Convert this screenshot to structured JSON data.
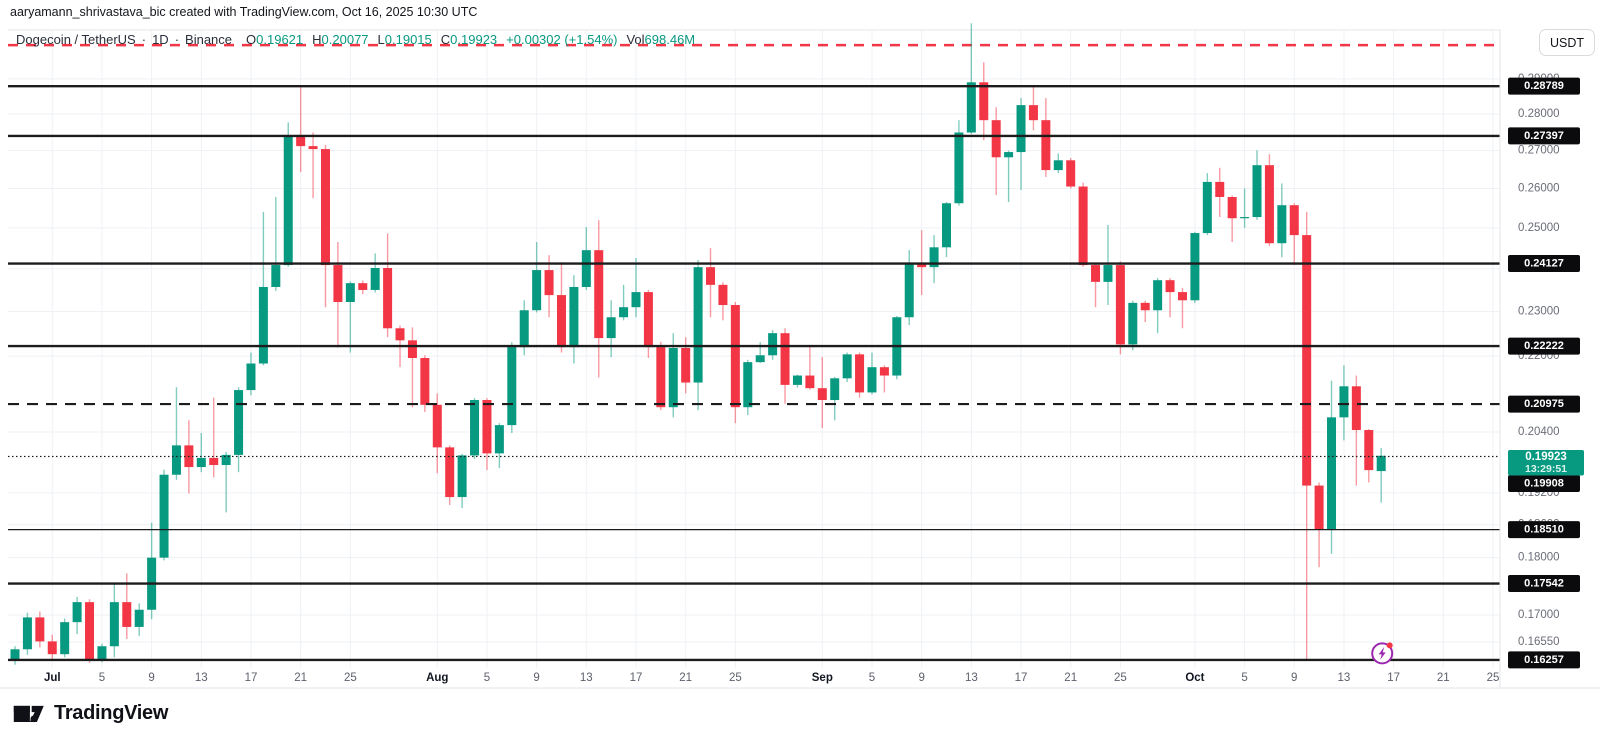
{
  "attribution": "aaryamann_shrivastava_bic created with TradingView.com, Oct 16, 2025 10:30 UTC",
  "header": {
    "symbol": "Dogecoin / TetherUS",
    "sep": "·",
    "interval": "1D",
    "exchange": "Binance",
    "o_label": "O",
    "o": "0.19621",
    "h_label": "H",
    "h": "0.20077",
    "l_label": "L",
    "l": "0.19015",
    "c_label": "C",
    "c": "0.19923",
    "change": "+0.00302 (+1.54%)",
    "vol_label": "Vol",
    "vol": "698.46M"
  },
  "axis_button": "USDT",
  "logo_text": "TradingView",
  "colors": {
    "up": "#089981",
    "down": "#f23645",
    "level": "#1c1c1c",
    "grid": "#eff1f5",
    "frame": "#e2e4ea",
    "axis_text": "#6a6d77",
    "day_label": "#5d606b",
    "month_label": "#131722",
    "badge_bg": "#0b0b0d",
    "badge_text": "#ffffff",
    "alert": "#f23645",
    "marker": "#9c27b0"
  },
  "chart_data": {
    "type": "candlestick",
    "symbol": "DOGEUSDT",
    "timeframe": "1D",
    "scale": "log",
    "ylim_approx": [
      0.158,
      0.315
    ],
    "grid": true,
    "ohlc_columns": [
      "date",
      "open",
      "high",
      "low",
      "close"
    ],
    "ohlc": [
      [
        "Jun 28",
        0.1625,
        0.1648,
        0.1618,
        0.1643
      ],
      [
        "Jun 29",
        0.1643,
        0.1704,
        0.1634,
        0.1696
      ],
      [
        "Jun 30",
        0.1696,
        0.1706,
        0.1646,
        0.1656
      ],
      [
        "Jul 1",
        0.1656,
        0.1667,
        0.1624,
        0.1635
      ],
      [
        "Jul 2",
        0.1635,
        0.1694,
        0.163,
        0.1688
      ],
      [
        "Jul 3",
        0.1688,
        0.1731,
        0.1668,
        0.1722
      ],
      [
        "Jul 4",
        0.1722,
        0.1727,
        0.1621,
        0.1626
      ],
      [
        "Jul 5",
        0.1626,
        0.1652,
        0.1622,
        0.1648
      ],
      [
        "Jul 6",
        0.1648,
        0.1753,
        0.163,
        0.1722
      ],
      [
        "Jul 7",
        0.1722,
        0.1772,
        0.166,
        0.168
      ],
      [
        "Jul 8",
        0.168,
        0.172,
        0.1665,
        0.1709
      ],
      [
        "Jul 9",
        0.1709,
        0.1864,
        0.1693,
        0.18
      ],
      [
        "Jul 10",
        0.18,
        0.1965,
        0.1795,
        0.1955
      ],
      [
        "Jul 11",
        0.1955,
        0.2133,
        0.1945,
        0.2013
      ],
      [
        "Jul 12",
        0.2013,
        0.2064,
        0.1919,
        0.197
      ],
      [
        "Jul 13",
        0.197,
        0.2038,
        0.196,
        0.1988
      ],
      [
        "Jul 14",
        0.1988,
        0.2111,
        0.195,
        0.1974
      ],
      [
        "Jul 15",
        0.1974,
        0.2,
        0.1883,
        0.1994
      ],
      [
        "Jul 16",
        0.1994,
        0.2133,
        0.196,
        0.2127
      ],
      [
        "Jul 17",
        0.2127,
        0.2208,
        0.2116,
        0.2184
      ],
      [
        "Jul 18",
        0.2184,
        0.254,
        0.218,
        0.2357
      ],
      [
        "Jul 19",
        0.2357,
        0.2578,
        0.2348,
        0.2409
      ],
      [
        "Jul 20",
        0.2409,
        0.2777,
        0.2405,
        0.274
      ],
      [
        "Jul 21",
        0.274,
        0.2876,
        0.2643,
        0.2712
      ],
      [
        "Jul 22",
        0.2712,
        0.2749,
        0.2575,
        0.2704
      ],
      [
        "Jul 23",
        0.2704,
        0.2715,
        0.231,
        0.2409
      ],
      [
        "Jul 24",
        0.2409,
        0.2465,
        0.2219,
        0.2322
      ],
      [
        "Jul 25",
        0.2322,
        0.237,
        0.2208,
        0.2366
      ],
      [
        "Jul 26",
        0.2366,
        0.2372,
        0.234,
        0.235
      ],
      [
        "Jul 27",
        0.235,
        0.2437,
        0.2344,
        0.2402
      ],
      [
        "Jul 28",
        0.2402,
        0.2486,
        0.2242,
        0.2262
      ],
      [
        "Jul 29",
        0.2262,
        0.2268,
        0.2176,
        0.2235
      ],
      [
        "Jul 30",
        0.2235,
        0.2264,
        0.2091,
        0.2196
      ],
      [
        "Jul 31",
        0.2196,
        0.2202,
        0.2081,
        0.2096
      ],
      [
        "Aug 1",
        0.2096,
        0.212,
        0.1958,
        0.2009
      ],
      [
        "Aug 2",
        0.2009,
        0.2013,
        0.1897,
        0.1912
      ],
      [
        "Aug 3",
        0.1912,
        0.1996,
        0.1891,
        0.1993
      ],
      [
        "Aug 4",
        0.1993,
        0.211,
        0.1986,
        0.2106
      ],
      [
        "Aug 5",
        0.2106,
        0.211,
        0.1964,
        0.1997
      ],
      [
        "Aug 6",
        0.1997,
        0.2058,
        0.1968,
        0.2054
      ],
      [
        "Aug 7",
        0.2054,
        0.2231,
        0.2038,
        0.222
      ],
      [
        "Aug 8",
        0.222,
        0.2326,
        0.2202,
        0.2303
      ],
      [
        "Aug 9",
        0.2303,
        0.2465,
        0.2298,
        0.2397
      ],
      [
        "Aug 10",
        0.2397,
        0.2433,
        0.2287,
        0.2338
      ],
      [
        "Aug 11",
        0.2338,
        0.2416,
        0.2208,
        0.222
      ],
      [
        "Aug 12",
        0.222,
        0.2385,
        0.2184,
        0.2357
      ],
      [
        "Aug 13",
        0.2357,
        0.2502,
        0.235,
        0.2445
      ],
      [
        "Aug 14",
        0.2445,
        0.2519,
        0.2154,
        0.224
      ],
      [
        "Aug 15",
        0.224,
        0.2326,
        0.2198,
        0.2287
      ],
      [
        "Aug 16",
        0.2287,
        0.2362,
        0.228,
        0.231
      ],
      [
        "Aug 17",
        0.231,
        0.2426,
        0.2287,
        0.2345
      ],
      [
        "Aug 18",
        0.2345,
        0.235,
        0.2196,
        0.222
      ],
      [
        "Aug 19",
        0.222,
        0.2232,
        0.2085,
        0.2091
      ],
      [
        "Aug 20",
        0.2091,
        0.2251,
        0.207,
        0.2218
      ],
      [
        "Aug 21",
        0.2218,
        0.2242,
        0.212,
        0.2143
      ],
      [
        "Aug 22",
        0.2143,
        0.2421,
        0.2085,
        0.2404
      ],
      [
        "Aug 23",
        0.2404,
        0.245,
        0.2287,
        0.2362
      ],
      [
        "Aug 24",
        0.2362,
        0.2368,
        0.228,
        0.2315
      ],
      [
        "Aug 25",
        0.2315,
        0.2322,
        0.2058,
        0.2091
      ],
      [
        "Aug 26",
        0.2091,
        0.2192,
        0.2075,
        0.2187
      ],
      [
        "Aug 27",
        0.2187,
        0.2231,
        0.2185,
        0.2202
      ],
      [
        "Aug 28",
        0.2202,
        0.2258,
        0.2192,
        0.2251
      ],
      [
        "Aug 29",
        0.2251,
        0.2262,
        0.2098,
        0.2138
      ],
      [
        "Aug 30",
        0.2138,
        0.216,
        0.2132,
        0.2158
      ],
      [
        "Aug 31",
        0.2158,
        0.2225,
        0.2128,
        0.2131
      ],
      [
        "Sep 1",
        0.2131,
        0.2198,
        0.2048,
        0.2106
      ],
      [
        "Sep 2",
        0.2106,
        0.2155,
        0.2064,
        0.2152
      ],
      [
        "Sep 3",
        0.2152,
        0.2208,
        0.2144,
        0.2204
      ],
      [
        "Sep 4",
        0.2204,
        0.2208,
        0.2111,
        0.2122
      ],
      [
        "Sep 5",
        0.2122,
        0.2208,
        0.2118,
        0.2176
      ],
      [
        "Sep 6",
        0.2176,
        0.218,
        0.2122,
        0.2158
      ],
      [
        "Sep 7",
        0.2158,
        0.229,
        0.215,
        0.2287
      ],
      [
        "Sep 8",
        0.2287,
        0.2445,
        0.2269,
        0.2414
      ],
      [
        "Sep 9",
        0.2414,
        0.2494,
        0.2338,
        0.2404
      ],
      [
        "Sep 10",
        0.2404,
        0.2482,
        0.2366,
        0.2452
      ],
      [
        "Sep 11",
        0.2452,
        0.2565,
        0.2428,
        0.2562
      ],
      [
        "Sep 12",
        0.2562,
        0.2783,
        0.2556,
        0.2749
      ],
      [
        "Sep 13",
        0.2749,
        0.3065,
        0.2745,
        0.289
      ],
      [
        "Sep 14",
        0.289,
        0.2948,
        0.2728,
        0.2783
      ],
      [
        "Sep 15",
        0.2783,
        0.2819,
        0.2583,
        0.2682
      ],
      [
        "Sep 16",
        0.2682,
        0.27,
        0.2565,
        0.2696
      ],
      [
        "Sep 17",
        0.2696,
        0.2845,
        0.2596,
        0.2825
      ],
      [
        "Sep 18",
        0.2825,
        0.2879,
        0.2755,
        0.2783
      ],
      [
        "Sep 19",
        0.2783,
        0.2845,
        0.263,
        0.2648
      ],
      [
        "Sep 20",
        0.2648,
        0.2692,
        0.264,
        0.2674
      ],
      [
        "Sep 21",
        0.2674,
        0.268,
        0.26,
        0.2605
      ],
      [
        "Sep 22",
        0.2605,
        0.2615,
        0.2405,
        0.2409
      ],
      [
        "Sep 23",
        0.2409,
        0.2415,
        0.231,
        0.2369
      ],
      [
        "Sep 24",
        0.2369,
        0.2507,
        0.2315,
        0.2409
      ],
      [
        "Sep 25",
        0.2409,
        0.2418,
        0.2204,
        0.2226
      ],
      [
        "Sep 26",
        0.2226,
        0.2325,
        0.2213,
        0.232
      ],
      [
        "Sep 27",
        0.232,
        0.2325,
        0.2276,
        0.2303
      ],
      [
        "Sep 28",
        0.2303,
        0.2378,
        0.2251,
        0.2373
      ],
      [
        "Sep 29",
        0.2373,
        0.2378,
        0.2287,
        0.2345
      ],
      [
        "Sep 30",
        0.2345,
        0.2355,
        0.2262,
        0.2326
      ],
      [
        "Oct 1",
        0.2326,
        0.249,
        0.232,
        0.2487
      ],
      [
        "Oct 2",
        0.2487,
        0.264,
        0.2482,
        0.2617
      ],
      [
        "Oct 3",
        0.2617,
        0.2654,
        0.2527,
        0.2578
      ],
      [
        "Oct 4",
        0.2578,
        0.2582,
        0.2465,
        0.2524
      ],
      [
        "Oct 5",
        0.2524,
        0.26,
        0.25,
        0.2527
      ],
      [
        "Oct 6",
        0.2527,
        0.2701,
        0.252,
        0.2661
      ],
      [
        "Oct 7",
        0.2661,
        0.269,
        0.2455,
        0.2462
      ],
      [
        "Oct 8",
        0.2462,
        0.2613,
        0.2428,
        0.2557
      ],
      [
        "Oct 9",
        0.2557,
        0.2562,
        0.2409,
        0.2482
      ],
      [
        "Oct 10",
        0.2482,
        0.254,
        0.1626,
        0.1934
      ],
      [
        "Oct 11",
        0.1934,
        0.194,
        0.1783,
        0.1851
      ],
      [
        "Oct 12",
        0.1851,
        0.2147,
        0.1807,
        0.207
      ],
      [
        "Oct 13",
        0.207,
        0.218,
        0.2023,
        0.2135
      ],
      [
        "Oct 14",
        0.2135,
        0.2158,
        0.1934,
        0.2044
      ],
      [
        "Oct 15",
        0.2044,
        0.2046,
        0.194,
        0.1964
      ],
      [
        "Oct 16",
        0.19621,
        0.20077,
        0.19015,
        0.19923
      ]
    ],
    "levels": [
      {
        "label": "0.28789",
        "price": 0.28789,
        "style": "solid",
        "width": 2.4
      },
      {
        "label": "0.27397",
        "price": 0.27397,
        "style": "solid",
        "width": 2.4
      },
      {
        "label": "0.24127",
        "price": 0.24127,
        "style": "solid",
        "width": 2.4
      },
      {
        "label": "0.22222",
        "price": 0.22222,
        "style": "solid",
        "width": 2.4
      },
      {
        "label": "0.20975",
        "price": 0.20975,
        "style": "dashed",
        "width": 2.2
      },
      {
        "label": "0.19908",
        "price": 0.19908,
        "style": "dotted",
        "width": 1.2,
        "label_y": 483.5
      },
      {
        "label": "0.18510",
        "price": 0.1851,
        "style": "solid",
        "width": 1.2
      },
      {
        "label": "0.17542",
        "price": 0.17542,
        "style": "solid",
        "width": 2.4
      },
      {
        "label": "0.16257",
        "price": 0.16257,
        "style": "solid",
        "width": 2.4
      }
    ],
    "alert_line": {
      "price": 0.2999,
      "style": "dashed",
      "color": "#f23645"
    },
    "last_price": {
      "label": "0.19923",
      "countdown": "13:29:51",
      "direction": "up"
    },
    "y_ticks": [
      {
        "label": "0.29000",
        "price": 0.29
      },
      {
        "label": "0.28000",
        "price": 0.28
      },
      {
        "label": "0.27000",
        "price": 0.27
      },
      {
        "label": "0.26000",
        "price": 0.26
      },
      {
        "label": "0.25000",
        "price": 0.25
      },
      {
        "label": "0.24000",
        "price": 0.24
      },
      {
        "label": "0.23000",
        "price": 0.23
      },
      {
        "label": "0.22000",
        "price": 0.22
      },
      {
        "label": "0.20400",
        "price": 0.204
      },
      {
        "label": "0.19200",
        "price": 0.192
      },
      {
        "label": "0.18600",
        "price": 0.186
      },
      {
        "label": "0.18000",
        "price": 0.18
      },
      {
        "label": "0.17000",
        "price": 0.17
      },
      {
        "label": "0.16550",
        "price": 0.1655
      }
    ],
    "x_ticks": [
      {
        "label": "Jul",
        "index": 3,
        "major": true
      },
      {
        "label": "5",
        "index": 7
      },
      {
        "label": "9",
        "index": 11
      },
      {
        "label": "13",
        "index": 15
      },
      {
        "label": "17",
        "index": 19
      },
      {
        "label": "21",
        "index": 23
      },
      {
        "label": "25",
        "index": 27
      },
      {
        "label": "Aug",
        "index": 34,
        "major": true
      },
      {
        "label": "5",
        "index": 38
      },
      {
        "label": "9",
        "index": 42
      },
      {
        "label": "13",
        "index": 46
      },
      {
        "label": "17",
        "index": 50
      },
      {
        "label": "21",
        "index": 54
      },
      {
        "label": "25",
        "index": 58
      },
      {
        "label": "Sep",
        "index": 65,
        "major": true
      },
      {
        "label": "5",
        "index": 69
      },
      {
        "label": "9",
        "index": 73
      },
      {
        "label": "13",
        "index": 77
      },
      {
        "label": "17",
        "index": 81
      },
      {
        "label": "21",
        "index": 85
      },
      {
        "label": "25",
        "index": 89
      },
      {
        "label": "Oct",
        "index": 95,
        "major": true
      },
      {
        "label": "5",
        "index": 99
      },
      {
        "label": "9",
        "index": 103
      },
      {
        "label": "13",
        "index": 107
      },
      {
        "label": "17",
        "index": 111
      },
      {
        "label": "21",
        "index": 115
      },
      {
        "label": "25",
        "index": 119
      }
    ],
    "event_marker": {
      "icon": "lightning-icon",
      "bar_index": 110,
      "price": 0.1638
    }
  }
}
